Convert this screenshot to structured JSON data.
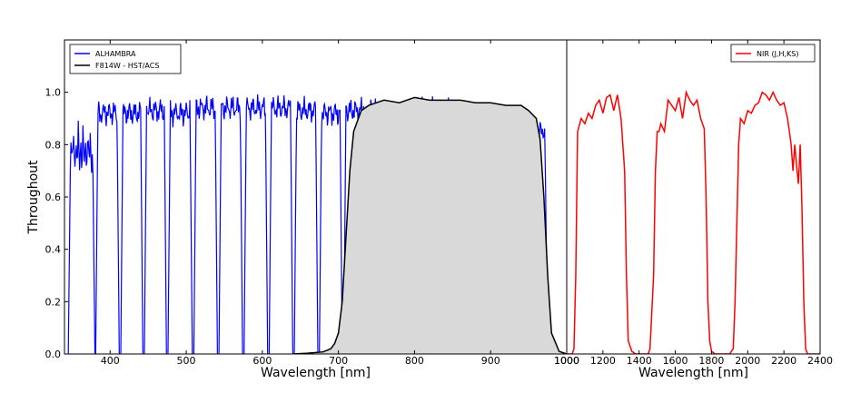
{
  "chart_data": [
    {
      "type": "line",
      "xlabel": "Wavelength [nm]",
      "ylabel": "Throughout",
      "xlim": [
        340,
        1000
      ],
      "ylim": [
        0,
        1.2
      ],
      "xticks": [
        400,
        500,
        600,
        700,
        800,
        900,
        1000
      ],
      "yticks": [
        0.0,
        0.2,
        0.4,
        0.6,
        0.8,
        1.0
      ],
      "ytick_labels": [
        "0.0",
        "0.2",
        "0.4",
        "0.6",
        "0.8",
        "1.0"
      ],
      "legend": {
        "position": "top-left",
        "entries": [
          "ALHAMBRA",
          "F814W - HST/ACS"
        ]
      },
      "series": [
        {
          "name": "ALHAMBRA",
          "color": "#0000ff",
          "bands": [
            {
              "lo": 345,
              "hi": 380,
              "peak": 0.92
            },
            {
              "lo": 381,
              "hi": 412,
              "peak": 0.97
            },
            {
              "lo": 414,
              "hi": 443,
              "peak": 0.97
            },
            {
              "lo": 445,
              "hi": 474,
              "peak": 0.98
            },
            {
              "lo": 476,
              "hi": 508,
              "peak": 0.97
            },
            {
              "lo": 510,
              "hi": 541,
              "peak": 0.99
            },
            {
              "lo": 543,
              "hi": 574,
              "peak": 0.99
            },
            {
              "lo": 576,
              "hi": 607,
              "peak": 0.99
            },
            {
              "lo": 609,
              "hi": 640,
              "peak": 0.99
            },
            {
              "lo": 642,
              "hi": 673,
              "peak": 0.98
            },
            {
              "lo": 675,
              "hi": 705,
              "peak": 0.97
            },
            {
              "lo": 707,
              "hi": 736,
              "peak": 0.98
            },
            {
              "lo": 738,
              "hi": 768,
              "peak": 0.98
            },
            {
              "lo": 770,
              "hi": 800,
              "peak": 0.97
            },
            {
              "lo": 802,
              "hi": 834,
              "peak": 0.98
            },
            {
              "lo": 836,
              "hi": 867,
              "peak": 0.98
            },
            {
              "lo": 869,
              "hi": 900,
              "peak": 0.96
            },
            {
              "lo": 902,
              "hi": 933,
              "peak": 0.96
            },
            {
              "lo": 935,
              "hi": 975,
              "peak": 0.9
            }
          ]
        },
        {
          "name": "F814W - HST/ACS",
          "color": "#000000",
          "fill": "#d9d9d9",
          "x": [
            640,
            660,
            680,
            690,
            695,
            700,
            705,
            710,
            715,
            720,
            730,
            740,
            750,
            760,
            780,
            800,
            820,
            840,
            860,
            880,
            900,
            920,
            940,
            950,
            960,
            965,
            970,
            975,
            980,
            990,
            1000
          ],
          "y": [
            0.0,
            0.003,
            0.008,
            0.02,
            0.04,
            0.08,
            0.2,
            0.45,
            0.7,
            0.85,
            0.93,
            0.95,
            0.96,
            0.97,
            0.96,
            0.98,
            0.97,
            0.97,
            0.97,
            0.96,
            0.96,
            0.95,
            0.95,
            0.93,
            0.9,
            0.82,
            0.6,
            0.3,
            0.08,
            0.01,
            0.0
          ]
        }
      ]
    },
    {
      "type": "line",
      "xlabel": "Wavelength [nm]",
      "ylabel": "",
      "xlim": [
        1000,
        2400
      ],
      "ylim": [
        0,
        1.2
      ],
      "xticks": [
        1000,
        1200,
        1400,
        1600,
        1800,
        2000,
        2200,
        2400
      ],
      "legend": {
        "position": "top-right",
        "entries": [
          "NIR (J,H,KS)"
        ]
      },
      "series": [
        {
          "name": "NIR (J,H,KS)",
          "color": "#ff0000",
          "x": [
            1000,
            1030,
            1040,
            1050,
            1060,
            1080,
            1100,
            1120,
            1140,
            1160,
            1180,
            1200,
            1220,
            1240,
            1260,
            1280,
            1300,
            1320,
            1330,
            1340,
            1360,
            1380,
            1450,
            1460,
            1480,
            1490,
            1500,
            1510,
            1520,
            1540,
            1560,
            1580,
            1600,
            1620,
            1640,
            1660,
            1680,
            1700,
            1720,
            1740,
            1760,
            1770,
            1780,
            1790,
            1800,
            1820,
            1900,
            1920,
            1930,
            1940,
            1950,
            1960,
            1980,
            2000,
            2020,
            2040,
            2060,
            2080,
            2100,
            2120,
            2140,
            2160,
            2180,
            2200,
            2220,
            2240,
            2250,
            2260,
            2270,
            2280,
            2290,
            2300,
            2310,
            2320,
            2330,
            2400
          ],
          "y": [
            0.0,
            0.0,
            0.02,
            0.3,
            0.85,
            0.9,
            0.88,
            0.92,
            0.9,
            0.95,
            0.97,
            0.92,
            0.98,
            0.99,
            0.93,
            0.99,
            0.9,
            0.7,
            0.3,
            0.05,
            0.01,
            0.0,
            0.0,
            0.02,
            0.3,
            0.7,
            0.85,
            0.85,
            0.88,
            0.85,
            0.97,
            0.95,
            0.93,
            0.98,
            0.9,
            1.0,
            0.97,
            0.95,
            0.97,
            0.9,
            0.86,
            0.6,
            0.2,
            0.05,
            0.01,
            0.0,
            0.0,
            0.02,
            0.2,
            0.5,
            0.8,
            0.9,
            0.88,
            0.93,
            0.92,
            0.95,
            0.96,
            1.0,
            0.99,
            0.97,
            1.0,
            0.97,
            0.95,
            0.96,
            0.9,
            0.8,
            0.7,
            0.8,
            0.72,
            0.65,
            0.8,
            0.55,
            0.2,
            0.02,
            0.0,
            0.0
          ]
        }
      ]
    }
  ]
}
